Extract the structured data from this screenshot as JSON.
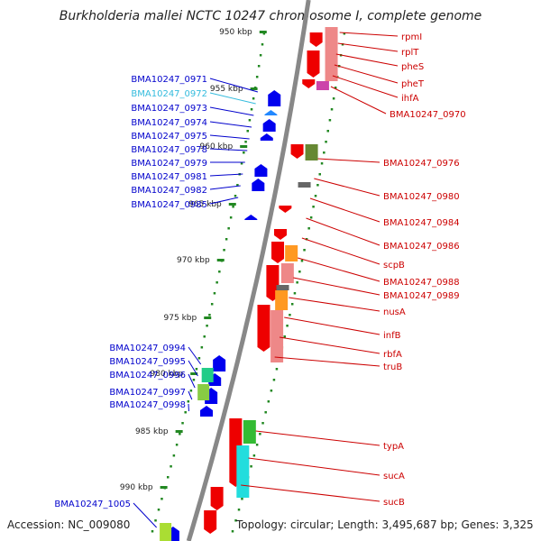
{
  "title": "Burkholderia mallei NCTC 10247 chromosome I, complete genome",
  "accession": "Accession: NC_009080",
  "summary": "Topology: circular; Length: 3,495,687 bp; Genes: 3,325",
  "colors": {
    "left_label": "#0000cc",
    "right_label": "#cc0000",
    "highlight_label": "#33bbdd",
    "backbone": "#888888",
    "tick": "#228822",
    "scale_text": "#222222"
  },
  "scale_ticks": [
    "950 kbp",
    "955 kbp",
    "960 kbp",
    "965 kbp",
    "970 kbp",
    "975 kbp",
    "980 kbp",
    "985 kbp",
    "990 kbp"
  ],
  "left_labels": [
    {
      "text": "BMA10247_0971",
      "highlight": false
    },
    {
      "text": "BMA10247_0972",
      "highlight": true
    },
    {
      "text": "BMA10247_0973",
      "highlight": false
    },
    {
      "text": "BMA10247_0974",
      "highlight": false
    },
    {
      "text": "BMA10247_0975",
      "highlight": false
    },
    {
      "text": "BMA10247_0978",
      "highlight": false
    },
    {
      "text": "BMA10247_0979",
      "highlight": false
    },
    {
      "text": "BMA10247_0981",
      "highlight": false
    },
    {
      "text": "BMA10247_0982",
      "highlight": false
    },
    {
      "text": "BMA10247_0985",
      "highlight": false
    },
    {
      "text": "BMA10247_0994",
      "highlight": false
    },
    {
      "text": "BMA10247_0995",
      "highlight": false
    },
    {
      "text": "BMA10247_0996",
      "highlight": false
    },
    {
      "text": "BMA10247_0997",
      "highlight": false
    },
    {
      "text": "BMA10247_0998",
      "highlight": false
    },
    {
      "text": "BMA10247_1005",
      "highlight": false
    }
  ],
  "right_labels": [
    {
      "text": "rpmI"
    },
    {
      "text": "rplT"
    },
    {
      "text": "pheS"
    },
    {
      "text": "pheT"
    },
    {
      "text": "ihfA"
    },
    {
      "text": "BMA10247_0970"
    },
    {
      "text": "BMA10247_0976"
    },
    {
      "text": "BMA10247_0980"
    },
    {
      "text": "BMA10247_0984"
    },
    {
      "text": "BMA10247_0986"
    },
    {
      "text": "scpB"
    },
    {
      "text": "BMA10247_0988"
    },
    {
      "text": "BMA10247_0989"
    },
    {
      "text": "nusA"
    },
    {
      "text": "infB"
    },
    {
      "text": "rbfA"
    },
    {
      "text": "truB"
    },
    {
      "text": "typA"
    },
    {
      "text": "sucA"
    },
    {
      "text": "sucB"
    }
  ]
}
